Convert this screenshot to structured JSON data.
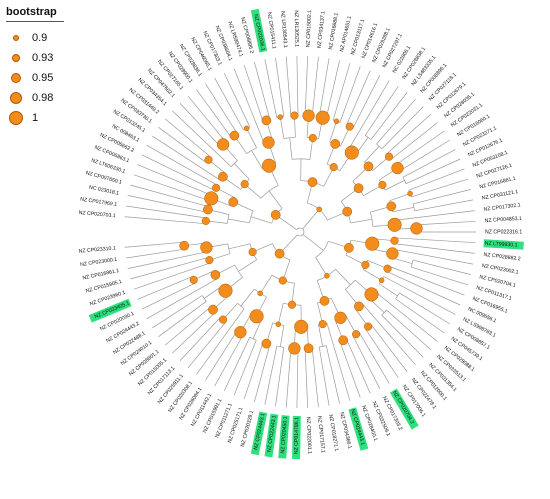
{
  "legend": {
    "title": "bootstrap",
    "entries": [
      {
        "label": "0.9",
        "value": 0.9
      },
      {
        "label": "0.93",
        "value": 0.93
      },
      {
        "label": "0.95",
        "value": 0.95
      },
      {
        "label": "0.98",
        "value": 0.98
      },
      {
        "label": "1",
        "value": 1.0
      }
    ]
  },
  "colors": {
    "branch": "#9a9a9a",
    "node_fill": "#f28c1c",
    "node_stroke": "#b25a00",
    "highlight": "#2ee07e",
    "label": "#111111"
  },
  "tree": {
    "layout": "circular",
    "tips": [
      {
        "label": "NZ CP020703.1",
        "hl": false
      },
      {
        "label": "NZ CP017969.1",
        "hl": false
      },
      {
        "label": "NC 023018.1",
        "hl": false
      },
      {
        "label": "NZ CP007650.1",
        "hl": false
      },
      {
        "label": "NZ LT606330.1",
        "hl": false
      },
      {
        "label": "NZ CP006863.1",
        "hl": false
      },
      {
        "label": "NZ CP006662.2",
        "hl": false
      },
      {
        "label": "NC 008463.1",
        "hl": false
      },
      {
        "label": "NZ CP013245.1",
        "hl": false
      },
      {
        "label": "NZ CP033730.1",
        "hl": false
      },
      {
        "label": "NZ CP031449.2",
        "hl": false
      },
      {
        "label": "NZ CP034354.1",
        "hl": false
      },
      {
        "label": "NZ CP047602.1",
        "hl": false
      },
      {
        "label": "NZ CP027165.1",
        "hl": false
      },
      {
        "label": "NZ CP028900.1",
        "hl": false
      },
      {
        "label": "NZ CP028836.1",
        "hl": false
      },
      {
        "label": "NZ CP046065.1",
        "hl": false
      },
      {
        "label": "NZ CP017303.1",
        "hl": false
      },
      {
        "label": "NZ CP038604.1",
        "hl": false
      },
      {
        "label": "NZ LR590474.1",
        "hl": false
      },
      {
        "label": "NZ CP008896.2",
        "hl": false
      },
      {
        "label": "NZ CP022036.1",
        "hl": true
      },
      {
        "label": "NZ CP015411.1",
        "hl": false
      },
      {
        "label": "NZ LR130543.1",
        "hl": false
      },
      {
        "label": "NZ LR130525.1",
        "hl": false
      },
      {
        "label": "NZ CP015002.1",
        "hl": false
      },
      {
        "label": "NZ CP034137.1",
        "hl": false
      },
      {
        "label": "NZ CP016688.1",
        "hl": false
      },
      {
        "label": "NZ AP014651.1",
        "hl": false
      },
      {
        "label": "NZ CP013117.1",
        "hl": false
      },
      {
        "label": "NZ CP014616.1",
        "hl": false
      },
      {
        "label": "NZ CP029288.1",
        "hl": false
      },
      {
        "label": "NZ CP027297.1",
        "hl": false
      },
      {
        "label": "NC 022806.1",
        "hl": false
      },
      {
        "label": "NZ CP028838.1",
        "hl": false
      },
      {
        "label": "NZ LS483335.1",
        "hl": false
      },
      {
        "label": "NZ CP008896.1",
        "hl": false
      },
      {
        "label": "NZ CP027118.1",
        "hl": false
      },
      {
        "label": "NZ CP012679.1",
        "hl": false
      },
      {
        "label": "NZ CP028035.1",
        "hl": false
      },
      {
        "label": "NZ CP022031.1",
        "hl": false
      },
      {
        "label": "NZ CP016060.1",
        "hl": false
      },
      {
        "label": "NZ CP023271.1",
        "hl": false
      },
      {
        "label": "NZ CP012676.1",
        "hl": false
      },
      {
        "label": "NZ CP053108.1",
        "hl": false
      },
      {
        "label": "NZ CP027126.1",
        "hl": false
      },
      {
        "label": "NZ CP016861.1",
        "hl": false
      },
      {
        "label": "NZ CP031121.1",
        "hl": false
      },
      {
        "label": "NZ CP017302.1",
        "hl": false
      },
      {
        "label": "NZ CP004853.1",
        "hl": false
      },
      {
        "label": "NZ CP022316.1",
        "hl": false
      },
      {
        "label": "NZ LT99930.1",
        "hl": true
      },
      {
        "label": "NZ CP028882.2",
        "hl": false
      },
      {
        "label": "NZ CP023002.1",
        "hl": false
      },
      {
        "label": "NZ CP020704.1",
        "hl": false
      },
      {
        "label": "NZ CP011317.1",
        "hl": false
      },
      {
        "label": "NZ CP016955.1",
        "hl": false
      },
      {
        "label": "NC 009656.1",
        "hl": false
      },
      {
        "label": "NZ LS998783.1",
        "hl": false
      },
      {
        "label": "NZ CP008857.1",
        "hl": false
      },
      {
        "label": "NZ CP045739.1",
        "hl": false
      },
      {
        "label": "NZ CP029088.1",
        "hl": false
      },
      {
        "label": "NZ CP033513.1",
        "hl": false
      },
      {
        "label": "NZ CP031354.1",
        "hl": false
      },
      {
        "label": "NZ CP012000.1",
        "hl": false
      },
      {
        "label": "NZ CP022478.1",
        "hl": false
      },
      {
        "label": "NZ CP017006.1",
        "hl": false
      },
      {
        "label": "NZ CP020704.2",
        "hl": true
      },
      {
        "label": "NZ CP017303.2",
        "hl": false
      },
      {
        "label": "NZ CP032509.1",
        "hl": false
      },
      {
        "label": "NZ CP028400.1",
        "hl": false
      },
      {
        "label": "NZ CP024443.1",
        "hl": true
      },
      {
        "label": "NZ CP034366.1",
        "hl": false
      },
      {
        "label": "NZ CP018271.1",
        "hl": false
      },
      {
        "label": "NZ CP017157.1",
        "hl": false
      },
      {
        "label": "NZ CP022001.1",
        "hl": false
      },
      {
        "label": "NZ CP014786.1",
        "hl": true
      },
      {
        "label": "NZ CP020450.1",
        "hl": true
      },
      {
        "label": "NZ CP022443.1",
        "hl": true
      },
      {
        "label": "NZ CP024443.1",
        "hl": true
      },
      {
        "label": "NZ CP020329.1",
        "hl": false
      },
      {
        "label": "NZ CP025171.1",
        "hl": false
      },
      {
        "label": "NZ CP011271.1",
        "hl": false
      },
      {
        "label": "NZ CP015991.1",
        "hl": false
      },
      {
        "label": "NZ CP011442.1",
        "hl": false
      },
      {
        "label": "NZ CP026064.1",
        "hl": false
      },
      {
        "label": "NZ CP020308.1",
        "hl": false
      },
      {
        "label": "NZ CP025911.1",
        "hl": false
      },
      {
        "label": "NZ CP017113.1",
        "hl": false
      },
      {
        "label": "NZ CP015005.1",
        "hl": false
      },
      {
        "label": "NZ CP028801.1",
        "hl": false
      },
      {
        "label": "NZ CP024010.1",
        "hl": false
      },
      {
        "label": "NZ CP022488.1",
        "hl": false
      },
      {
        "label": "NZ CP024443.2",
        "hl": false
      },
      {
        "label": "NZ CP020030.1",
        "hl": false
      },
      {
        "label": "NZ CP033405.1",
        "hl": true
      },
      {
        "label": "NZ CP023960.1",
        "hl": false
      },
      {
        "label": "NZ CP015905.1",
        "hl": false
      },
      {
        "label": "NZ CP016861.1",
        "hl": false
      },
      {
        "label": "NZ CP023000.1",
        "hl": false
      },
      {
        "label": "NZ CP023310.1",
        "hl": false
      }
    ]
  }
}
